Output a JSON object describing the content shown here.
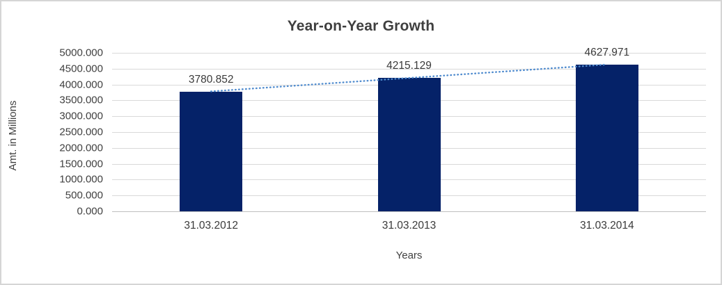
{
  "chart_data": {
    "type": "bar",
    "title": "Year-on-Year Growth",
    "categories": [
      "31.03.2012",
      "31.03.2013",
      "31.03.2014"
    ],
    "values": [
      3780.852,
      4215.129,
      4627.971
    ],
    "data_labels": [
      "3780.852",
      "4215.129",
      "4627.971"
    ],
    "xlabel": "Years",
    "ylabel": "Amt. in Millions",
    "ylim": [
      0,
      5000
    ],
    "ytick_step": 500,
    "ytick_decimals": 3,
    "grid": true,
    "legend_position": "none",
    "bar_color": "#052268",
    "trendline": {
      "type": "linear",
      "style": "dotted",
      "color": "#4f8bce",
      "start_value": 3784.4,
      "end_value": 4631.5
    }
  },
  "frame": {
    "background": "#ffffff",
    "border_color": "#d5d5d5",
    "gridline_color": "#d9d9d9",
    "axis_line_color": "#bfbfbf",
    "text_color": "#404040"
  }
}
